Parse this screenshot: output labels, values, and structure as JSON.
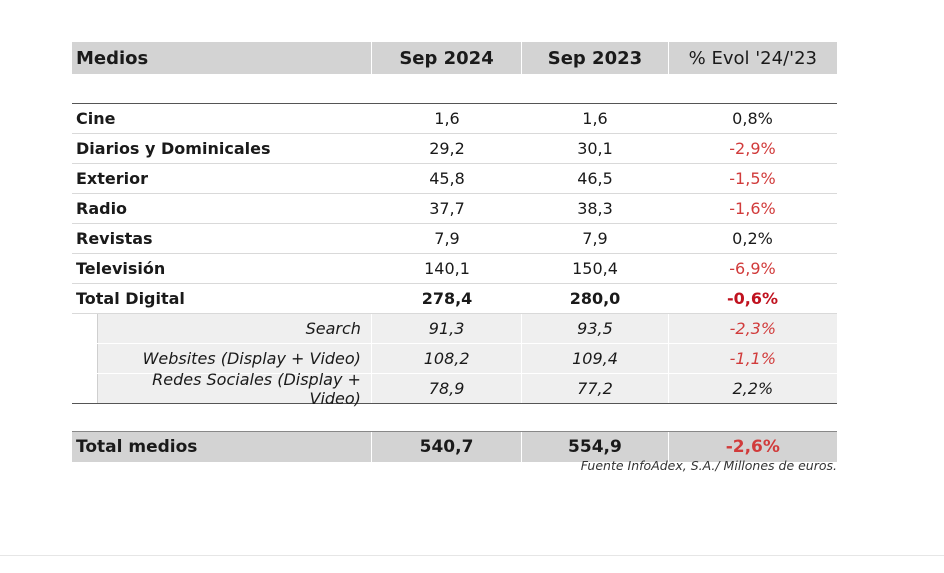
{
  "table": {
    "headers": [
      "Medios",
      "Sep 2024",
      "Sep 2023",
      "% Evol '24/'23"
    ],
    "rows": [
      {
        "name": "Cine",
        "v2024": "1,6",
        "v2023": "1,6",
        "evol": "0,8%"
      },
      {
        "name": "Diarios y Dominicales",
        "v2024": "29,2",
        "v2023": "30,1",
        "evol": "-2,9%"
      },
      {
        "name": "Exterior",
        "v2024": "45,8",
        "v2023": "46,5",
        "evol": "-1,5%"
      },
      {
        "name": "Radio",
        "v2024": "37,7",
        "v2023": "38,3",
        "evol": "-1,6%"
      },
      {
        "name": "Revistas",
        "v2024": "7,9",
        "v2023": "7,9",
        "evol": "0,2%"
      },
      {
        "name": "Televisión",
        "v2024": "140,1",
        "v2023": "150,4",
        "evol": "-6,9%"
      },
      {
        "name": "Total Digital",
        "v2024": "278,4",
        "v2023": "280,0",
        "evol": "-0,6%"
      }
    ],
    "subrows": [
      {
        "name": "Search",
        "v2024": "91,3",
        "v2023": "93,5",
        "evol": "-2,3%"
      },
      {
        "name": "Websites (Display + Video)",
        "v2024": "108,2",
        "v2023": "109,4",
        "evol": "-1,1%"
      },
      {
        "name": "Redes Sociales (Display + Video)",
        "v2024": "78,9",
        "v2023": "77,2",
        "evol": "2,2%"
      }
    ],
    "total": {
      "name": "Total medios",
      "v2024": "540,7",
      "v2023": "554,9",
      "evol": "-2,6%"
    }
  },
  "source": "Fuente InfoAdex, S.A./ Millones de euros.",
  "colors": {
    "negative": "#d13b3b",
    "header_bg": "#d3d3d3",
    "sub_bg": "#efefef"
  }
}
